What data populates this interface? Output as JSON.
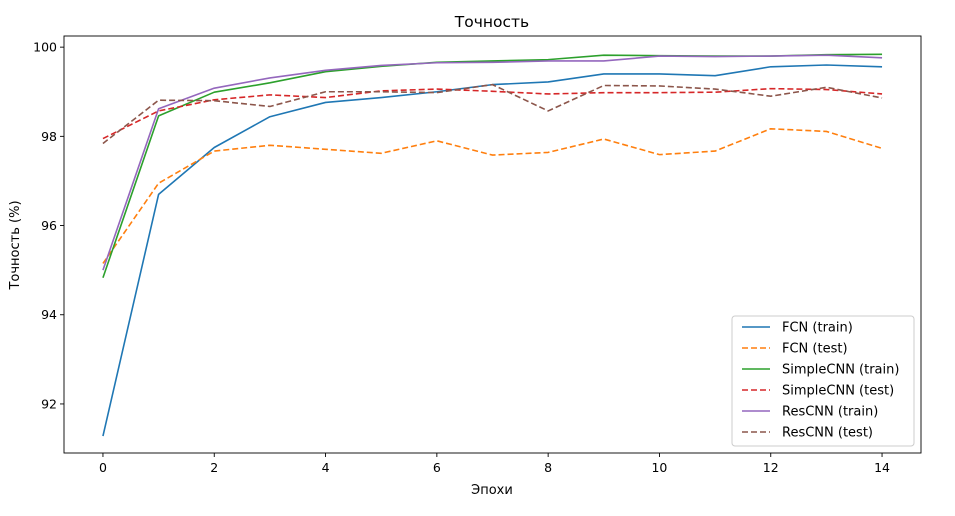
{
  "chart_data": {
    "type": "line",
    "title": "Точность",
    "xlabel": "Эпохи",
    "ylabel": "Точность (%)",
    "xlim": [
      -0.7,
      14.7
    ],
    "ylim": [
      90.9,
      100.25
    ],
    "xticks": [
      0,
      2,
      4,
      6,
      8,
      10,
      12,
      14
    ],
    "yticks": [
      92,
      94,
      96,
      98,
      100
    ],
    "grid": false,
    "legend_position": "lower-right",
    "x": [
      0,
      1,
      2,
      3,
      4,
      5,
      6,
      7,
      8,
      9,
      10,
      11,
      12,
      13,
      14
    ],
    "series": [
      {
        "name": "FCN (train)",
        "color": "#1f77b4",
        "dashed": false,
        "values": [
          91.28,
          96.7,
          97.75,
          98.44,
          98.76,
          98.87,
          99.0,
          99.16,
          99.22,
          99.4,
          99.4,
          99.36,
          99.56,
          99.6,
          99.56
        ]
      },
      {
        "name": "FCN (test)",
        "color": "#ff7f0e",
        "dashed": true,
        "values": [
          95.15,
          96.95,
          97.67,
          97.8,
          97.71,
          97.62,
          97.9,
          97.58,
          97.64,
          97.94,
          97.59,
          97.67,
          98.17,
          98.11,
          97.73
        ]
      },
      {
        "name": "SimpleCNN (train)",
        "color": "#2ca02c",
        "dashed": false,
        "values": [
          94.83,
          98.46,
          98.99,
          99.2,
          99.45,
          99.57,
          99.66,
          99.69,
          99.72,
          99.82,
          99.81,
          99.8,
          99.8,
          99.83,
          99.84
        ]
      },
      {
        "name": "SimpleCNN (test)",
        "color": "#d62728",
        "dashed": true,
        "values": [
          97.95,
          98.57,
          98.82,
          98.93,
          98.87,
          99.02,
          99.06,
          99.01,
          98.95,
          98.98,
          98.98,
          98.99,
          99.07,
          99.05,
          98.95
        ]
      },
      {
        "name": "ResCNN (train)",
        "color": "#9467bd",
        "dashed": false,
        "values": [
          95.0,
          98.62,
          99.08,
          99.31,
          99.48,
          99.59,
          99.65,
          99.66,
          99.69,
          99.69,
          99.8,
          99.79,
          99.8,
          99.82,
          99.76
        ]
      },
      {
        "name": "ResCNN (test)",
        "color": "#8c564b",
        "dashed": true,
        "values": [
          97.84,
          98.81,
          98.8,
          98.67,
          99.0,
          99.0,
          98.98,
          99.16,
          98.57,
          99.14,
          99.13,
          99.06,
          98.9,
          99.1,
          98.86
        ]
      }
    ]
  }
}
